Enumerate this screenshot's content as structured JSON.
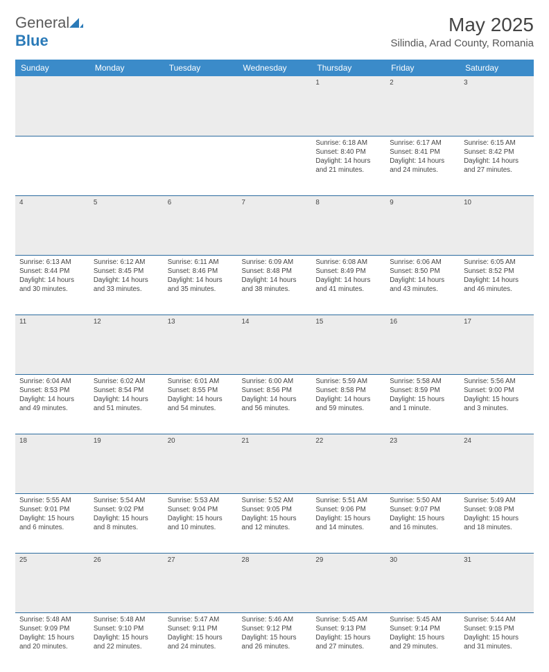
{
  "logo": {
    "text1": "General",
    "text2": "Blue"
  },
  "title": "May 2025",
  "location": "Silindia, Arad County, Romania",
  "dayHeaders": [
    "Sunday",
    "Monday",
    "Tuesday",
    "Wednesday",
    "Thursday",
    "Friday",
    "Saturday"
  ],
  "colors": {
    "headerBg": "#3b8bc9",
    "headerText": "#ffffff",
    "dayNumBg": "#ececec",
    "rowBorder": "#2a6a9e",
    "bodyText": "#444444",
    "logoBlue": "#2a7ab8"
  },
  "typography": {
    "titleSize": 28,
    "locationSize": 15,
    "headerSize": 12,
    "cellSize": 9.8
  },
  "weeks": [
    [
      {
        "num": "",
        "sunrise": "",
        "sunset": "",
        "daylight": ""
      },
      {
        "num": "",
        "sunrise": "",
        "sunset": "",
        "daylight": ""
      },
      {
        "num": "",
        "sunrise": "",
        "sunset": "",
        "daylight": ""
      },
      {
        "num": "",
        "sunrise": "",
        "sunset": "",
        "daylight": ""
      },
      {
        "num": "1",
        "sunrise": "Sunrise: 6:18 AM",
        "sunset": "Sunset: 8:40 PM",
        "daylight": "Daylight: 14 hours and 21 minutes."
      },
      {
        "num": "2",
        "sunrise": "Sunrise: 6:17 AM",
        "sunset": "Sunset: 8:41 PM",
        "daylight": "Daylight: 14 hours and 24 minutes."
      },
      {
        "num": "3",
        "sunrise": "Sunrise: 6:15 AM",
        "sunset": "Sunset: 8:42 PM",
        "daylight": "Daylight: 14 hours and 27 minutes."
      }
    ],
    [
      {
        "num": "4",
        "sunrise": "Sunrise: 6:13 AM",
        "sunset": "Sunset: 8:44 PM",
        "daylight": "Daylight: 14 hours and 30 minutes."
      },
      {
        "num": "5",
        "sunrise": "Sunrise: 6:12 AM",
        "sunset": "Sunset: 8:45 PM",
        "daylight": "Daylight: 14 hours and 33 minutes."
      },
      {
        "num": "6",
        "sunrise": "Sunrise: 6:11 AM",
        "sunset": "Sunset: 8:46 PM",
        "daylight": "Daylight: 14 hours and 35 minutes."
      },
      {
        "num": "7",
        "sunrise": "Sunrise: 6:09 AM",
        "sunset": "Sunset: 8:48 PM",
        "daylight": "Daylight: 14 hours and 38 minutes."
      },
      {
        "num": "8",
        "sunrise": "Sunrise: 6:08 AM",
        "sunset": "Sunset: 8:49 PM",
        "daylight": "Daylight: 14 hours and 41 minutes."
      },
      {
        "num": "9",
        "sunrise": "Sunrise: 6:06 AM",
        "sunset": "Sunset: 8:50 PM",
        "daylight": "Daylight: 14 hours and 43 minutes."
      },
      {
        "num": "10",
        "sunrise": "Sunrise: 6:05 AM",
        "sunset": "Sunset: 8:52 PM",
        "daylight": "Daylight: 14 hours and 46 minutes."
      }
    ],
    [
      {
        "num": "11",
        "sunrise": "Sunrise: 6:04 AM",
        "sunset": "Sunset: 8:53 PM",
        "daylight": "Daylight: 14 hours and 49 minutes."
      },
      {
        "num": "12",
        "sunrise": "Sunrise: 6:02 AM",
        "sunset": "Sunset: 8:54 PM",
        "daylight": "Daylight: 14 hours and 51 minutes."
      },
      {
        "num": "13",
        "sunrise": "Sunrise: 6:01 AM",
        "sunset": "Sunset: 8:55 PM",
        "daylight": "Daylight: 14 hours and 54 minutes."
      },
      {
        "num": "14",
        "sunrise": "Sunrise: 6:00 AM",
        "sunset": "Sunset: 8:56 PM",
        "daylight": "Daylight: 14 hours and 56 minutes."
      },
      {
        "num": "15",
        "sunrise": "Sunrise: 5:59 AM",
        "sunset": "Sunset: 8:58 PM",
        "daylight": "Daylight: 14 hours and 59 minutes."
      },
      {
        "num": "16",
        "sunrise": "Sunrise: 5:58 AM",
        "sunset": "Sunset: 8:59 PM",
        "daylight": "Daylight: 15 hours and 1 minute."
      },
      {
        "num": "17",
        "sunrise": "Sunrise: 5:56 AM",
        "sunset": "Sunset: 9:00 PM",
        "daylight": "Daylight: 15 hours and 3 minutes."
      }
    ],
    [
      {
        "num": "18",
        "sunrise": "Sunrise: 5:55 AM",
        "sunset": "Sunset: 9:01 PM",
        "daylight": "Daylight: 15 hours and 6 minutes."
      },
      {
        "num": "19",
        "sunrise": "Sunrise: 5:54 AM",
        "sunset": "Sunset: 9:02 PM",
        "daylight": "Daylight: 15 hours and 8 minutes."
      },
      {
        "num": "20",
        "sunrise": "Sunrise: 5:53 AM",
        "sunset": "Sunset: 9:04 PM",
        "daylight": "Daylight: 15 hours and 10 minutes."
      },
      {
        "num": "21",
        "sunrise": "Sunrise: 5:52 AM",
        "sunset": "Sunset: 9:05 PM",
        "daylight": "Daylight: 15 hours and 12 minutes."
      },
      {
        "num": "22",
        "sunrise": "Sunrise: 5:51 AM",
        "sunset": "Sunset: 9:06 PM",
        "daylight": "Daylight: 15 hours and 14 minutes."
      },
      {
        "num": "23",
        "sunrise": "Sunrise: 5:50 AM",
        "sunset": "Sunset: 9:07 PM",
        "daylight": "Daylight: 15 hours and 16 minutes."
      },
      {
        "num": "24",
        "sunrise": "Sunrise: 5:49 AM",
        "sunset": "Sunset: 9:08 PM",
        "daylight": "Daylight: 15 hours and 18 minutes."
      }
    ],
    [
      {
        "num": "25",
        "sunrise": "Sunrise: 5:48 AM",
        "sunset": "Sunset: 9:09 PM",
        "daylight": "Daylight: 15 hours and 20 minutes."
      },
      {
        "num": "26",
        "sunrise": "Sunrise: 5:48 AM",
        "sunset": "Sunset: 9:10 PM",
        "daylight": "Daylight: 15 hours and 22 minutes."
      },
      {
        "num": "27",
        "sunrise": "Sunrise: 5:47 AM",
        "sunset": "Sunset: 9:11 PM",
        "daylight": "Daylight: 15 hours and 24 minutes."
      },
      {
        "num": "28",
        "sunrise": "Sunrise: 5:46 AM",
        "sunset": "Sunset: 9:12 PM",
        "daylight": "Daylight: 15 hours and 26 minutes."
      },
      {
        "num": "29",
        "sunrise": "Sunrise: 5:45 AM",
        "sunset": "Sunset: 9:13 PM",
        "daylight": "Daylight: 15 hours and 27 minutes."
      },
      {
        "num": "30",
        "sunrise": "Sunrise: 5:45 AM",
        "sunset": "Sunset: 9:14 PM",
        "daylight": "Daylight: 15 hours and 29 minutes."
      },
      {
        "num": "31",
        "sunrise": "Sunrise: 5:44 AM",
        "sunset": "Sunset: 9:15 PM",
        "daylight": "Daylight: 15 hours and 31 minutes."
      }
    ]
  ]
}
